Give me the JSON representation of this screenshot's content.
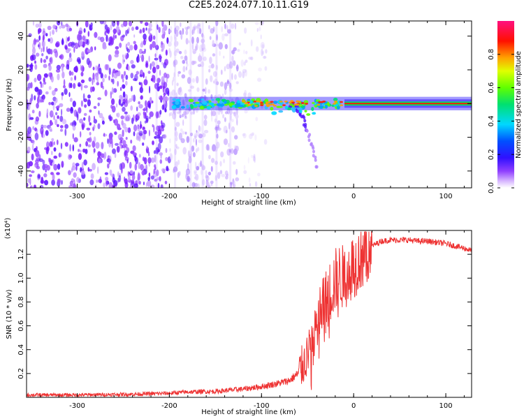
{
  "title": "C2E5.2024.077.10.11.G19",
  "colors": {
    "snr_line": "#ee3333",
    "spectrum_colormap": [
      "#ffffff",
      "#e0c8ff",
      "#b070ff",
      "#7000ff",
      "#2020ff",
      "#00c8ff",
      "#00e060",
      "#80ff00",
      "#ffff00",
      "#ff8000",
      "#ff0000",
      "#ff0080"
    ]
  },
  "chart_data": [
    {
      "type": "heatmap",
      "title": "",
      "xlabel": "Height of straight line (km)",
      "ylabel": "Frequency (Hz)",
      "xlim": [
        -355,
        128
      ],
      "ylim": [
        -50,
        49
      ],
      "xticks": [
        -300,
        -200,
        -100,
        0,
        100
      ],
      "yticks": [
        -40,
        -20,
        0,
        20,
        40
      ],
      "colorbar": {
        "label": "Normalized spectral amplitude",
        "range": [
          0.0,
          1.0
        ],
        "ticks": [
          "0.0",
          "0.2",
          "0.4",
          "0.6",
          "0.8"
        ]
      },
      "grid": false
    },
    {
      "type": "line",
      "title": "",
      "xlabel": "Height of straight line (km)",
      "ylabel": "SNR (10 * v/v)",
      "multiplier": "(x10⁴)",
      "xlim": [
        -355,
        128
      ],
      "ylim": [
        0,
        1.4
      ],
      "xticks": [
        -300,
        -200,
        -100,
        0,
        100
      ],
      "yticks": [
        "0.2",
        "0.4",
        "0.6",
        "0.8",
        "1.0",
        "1.2"
      ],
      "grid": false,
      "series": [
        {
          "x": [
            -355,
            -300,
            -250,
            -220,
            -200,
            -180,
            -150,
            -120,
            -100,
            -80,
            -70,
            -60,
            -50,
            -45,
            -40,
            -35,
            -30,
            -25,
            -20,
            -15,
            -10,
            -5,
            0,
            10,
            20,
            30,
            40,
            50,
            60,
            70,
            80,
            90,
            100,
            110,
            120,
            128
          ],
          "y": [
            0.02,
            0.02,
            0.025,
            0.03,
            0.035,
            0.045,
            0.05,
            0.07,
            0.09,
            0.12,
            0.14,
            0.2,
            0.35,
            0.48,
            0.62,
            0.72,
            0.8,
            0.9,
            0.98,
            1.02,
            1.0,
            1.08,
            1.1,
            1.2,
            1.27,
            1.31,
            1.32,
            1.32,
            1.32,
            1.31,
            1.31,
            1.3,
            1.29,
            1.27,
            1.25,
            1.23
          ]
        }
      ]
    }
  ]
}
